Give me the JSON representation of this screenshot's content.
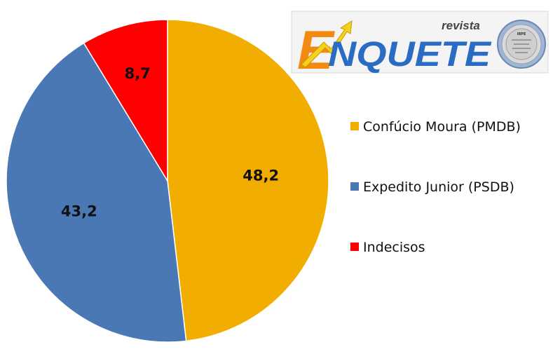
{
  "chart_data": {
    "type": "pie",
    "categories": [
      "Confúcio Moura (PMDB)",
      "Expedito Junior (PSDB)",
      "Indecisos"
    ],
    "values": [
      48.2,
      43.2,
      8.7
    ],
    "value_labels": [
      "48,2",
      "43,2",
      "8,7"
    ],
    "colors": [
      "#f2ae00",
      "#4a78b4",
      "#ff0000"
    ],
    "legend_position": "right",
    "start_angle": "12 o'clock",
    "direction": "clockwise"
  },
  "logo": {
    "brand_word": "ENQUETE",
    "brand_prefix": "revista",
    "seal_text": "IRPE",
    "colors": {
      "blue": "#2a6cc4",
      "orange": "#f28a12",
      "yellow": "#f4d21c"
    }
  }
}
